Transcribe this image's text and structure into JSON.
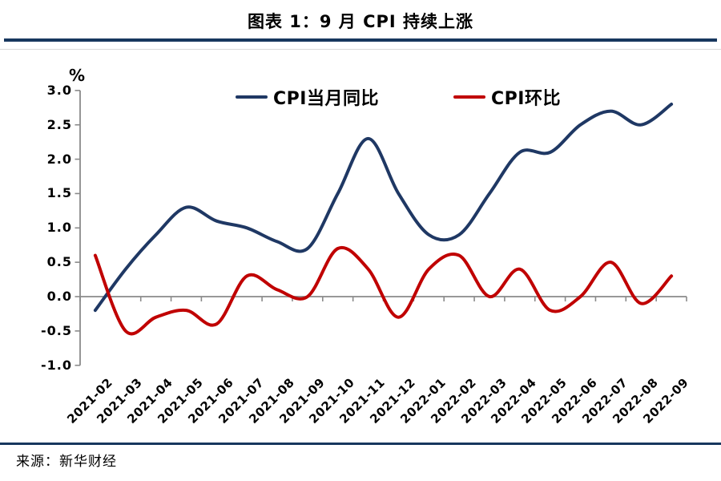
{
  "title": "图表 1：9 月 CPI 持续上涨",
  "source": "来源：新华财经",
  "colors": {
    "divider": "#17375e",
    "axis": "#8a8a8a",
    "yoy_line": "#1f3864",
    "mom_line": "#c00000",
    "text": "#000000"
  },
  "chart_data": {
    "type": "line",
    "title": "图表 1：9 月 CPI 持续上涨",
    "unit_label": "%",
    "xlabel": "",
    "ylabel": "%",
    "ylim": [
      -1.0,
      3.0
    ],
    "y_ticks": [
      3.0,
      2.5,
      2.0,
      1.5,
      1.0,
      0.5,
      0.0,
      -0.5,
      -1.0
    ],
    "grid": "zero-line-only",
    "legend_position": "top",
    "smooth": true,
    "categories": [
      "2021-02",
      "2021-03",
      "2021-04",
      "2021-05",
      "2021-06",
      "2021-07",
      "2021-08",
      "2021-09",
      "2021-10",
      "2021-11",
      "2021-12",
      "2022-01",
      "2022-02",
      "2022-03",
      "2022-04",
      "2022-05",
      "2022-06",
      "2022-07",
      "2022-08",
      "2022-09"
    ],
    "series": [
      {
        "name": "CPI当月同比",
        "color": "#1f3864",
        "values": [
          -0.2,
          0.4,
          0.9,
          1.3,
          1.1,
          1.0,
          0.8,
          0.7,
          1.5,
          2.3,
          1.5,
          0.9,
          0.9,
          1.5,
          2.1,
          2.1,
          2.5,
          2.7,
          2.5,
          2.8
        ]
      },
      {
        "name": "CPI环比",
        "color": "#c00000",
        "values": [
          0.6,
          -0.5,
          -0.3,
          -0.2,
          -0.4,
          0.3,
          0.1,
          0.0,
          0.7,
          0.4,
          -0.3,
          0.4,
          0.6,
          0.0,
          0.4,
          -0.2,
          0.0,
          0.5,
          -0.1,
          0.3
        ]
      }
    ]
  }
}
